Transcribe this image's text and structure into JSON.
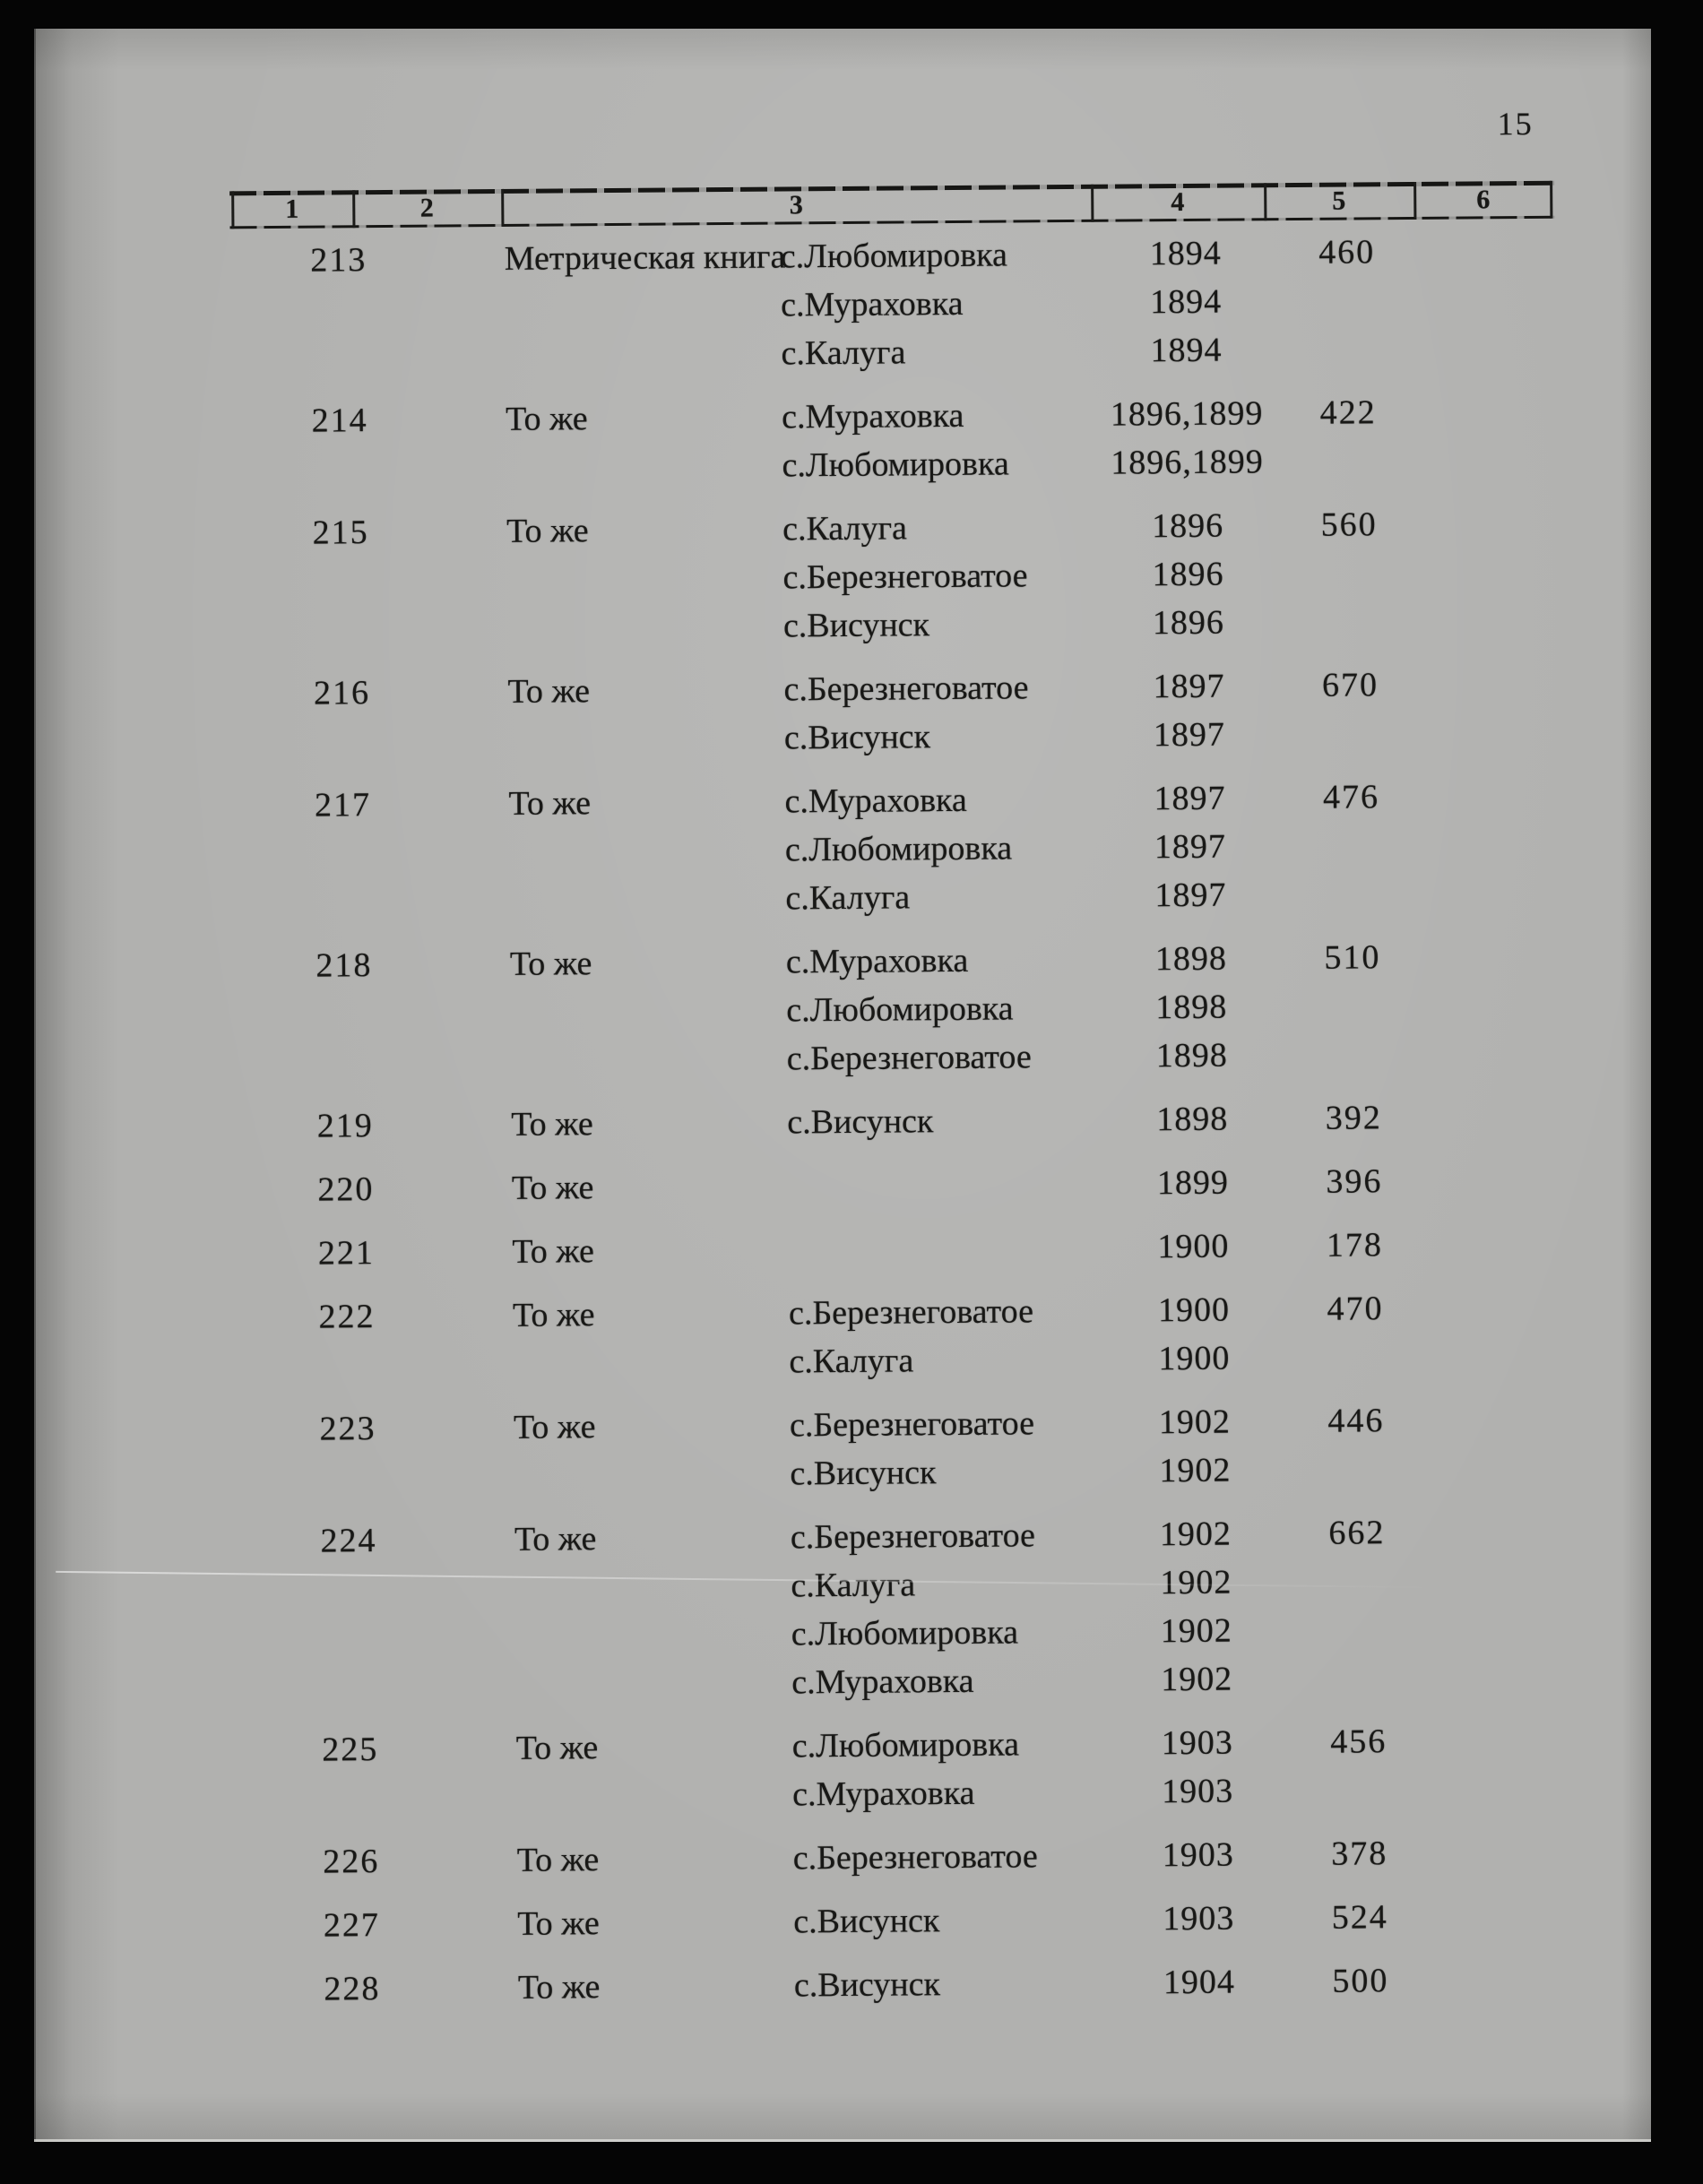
{
  "page": {
    "number": "15"
  },
  "colors": {
    "paper": "#b1b1af",
    "ink": "#181816",
    "background": "#050505"
  },
  "table": {
    "columns": [
      "1",
      "2",
      "3",
      "4",
      "5",
      "6"
    ],
    "rows": [
      {
        "no": "213",
        "title": "Метрическая книга",
        "pages": "460",
        "lines": [
          {
            "place": "с.Любомировка",
            "years": "1894"
          },
          {
            "place": "с.Мураховка",
            "years": "1894"
          },
          {
            "place": "с.Калуга",
            "years": "1894"
          }
        ]
      },
      {
        "no": "214",
        "title": "То же",
        "pages": "422",
        "lines": [
          {
            "place": "с.Мураховка",
            "years": "1896,1899"
          },
          {
            "place": "с.Любомировка",
            "years": "1896,1899"
          }
        ]
      },
      {
        "no": "215",
        "title": "То же",
        "pages": "560",
        "lines": [
          {
            "place": "с.Калуга",
            "years": "1896"
          },
          {
            "place": "с.Березнеговатое",
            "years": "1896"
          },
          {
            "place": "с.Висунск",
            "years": "1896"
          }
        ]
      },
      {
        "no": "216",
        "title": "То же",
        "pages": "670",
        "lines": [
          {
            "place": "с.Березнеговатое",
            "years": "1897"
          },
          {
            "place": "с.Висунск",
            "years": "1897"
          }
        ]
      },
      {
        "no": "217",
        "title": "То же",
        "pages": "476",
        "lines": [
          {
            "place": "с.Мураховка",
            "years": "1897"
          },
          {
            "place": "с.Любомировка",
            "years": "1897"
          },
          {
            "place": "с.Калуга",
            "years": "1897"
          }
        ]
      },
      {
        "no": "218",
        "title": "То же",
        "pages": "510",
        "lines": [
          {
            "place": "с.Мураховка",
            "years": "1898"
          },
          {
            "place": "с.Любомировка",
            "years": "1898"
          },
          {
            "place": "с.Березнеговатое",
            "years": "1898"
          }
        ]
      },
      {
        "no": "219",
        "title": "То же",
        "pages": "392",
        "lines": [
          {
            "place": "с.Висунск",
            "years": "1898"
          }
        ]
      },
      {
        "no": "220",
        "title": "То же",
        "pages": "396",
        "lines": [
          {
            "place": "",
            "years": "1899"
          }
        ]
      },
      {
        "no": "221",
        "title": "То же",
        "pages": "178",
        "lines": [
          {
            "place": "",
            "years": "1900"
          }
        ]
      },
      {
        "no": "222",
        "title": "То же",
        "pages": "470",
        "lines": [
          {
            "place": "с.Березнеговатое",
            "years": "1900"
          },
          {
            "place": "с.Калуга",
            "years": "1900"
          }
        ]
      },
      {
        "no": "223",
        "title": "То же",
        "pages": "446",
        "lines": [
          {
            "place": "с.Березнеговатое",
            "years": "1902"
          },
          {
            "place": "с.Висунск",
            "years": "1902"
          }
        ]
      },
      {
        "no": "224",
        "title": "То же",
        "pages": "662",
        "lines": [
          {
            "place": "с.Березнеговатое",
            "years": "1902"
          },
          {
            "place": "с.Калуга",
            "years": "1902"
          },
          {
            "place": "с.Любомировка",
            "years": "1902"
          },
          {
            "place": "с.Мураховка",
            "years": "1902"
          }
        ]
      },
      {
        "no": "225",
        "title": "То же",
        "pages": "456",
        "lines": [
          {
            "place": "с.Любомировка",
            "years": "1903"
          },
          {
            "place": "с.Мураховка",
            "years": "1903"
          }
        ]
      },
      {
        "no": "226",
        "title": "То же",
        "pages": "378",
        "lines": [
          {
            "place": "с.Березнеговатое",
            "years": "1903"
          }
        ]
      },
      {
        "no": "227",
        "title": "То же",
        "pages": "524",
        "lines": [
          {
            "place": "с.Висунск",
            "years": "1903"
          }
        ]
      },
      {
        "no": "228",
        "title": "То же",
        "pages": "500",
        "lines": [
          {
            "place": "с.Висунск",
            "years": "1904"
          }
        ]
      }
    ]
  }
}
